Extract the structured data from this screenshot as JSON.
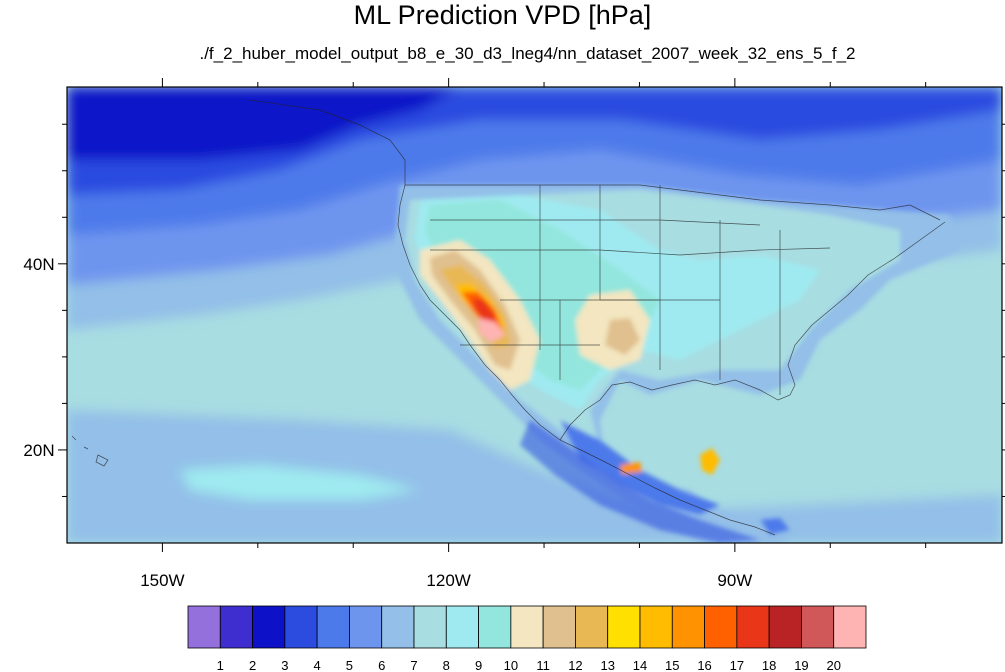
{
  "header": {
    "title": "ML Prediction VPD [hPa]",
    "subtitle": "./f_2_huber_model_output_b8_e_30_d3_lneg4/nn_dataset_2007_week_32_ens_5_f_2"
  },
  "map": {
    "lon_range": [
      -160,
      -62
    ],
    "lat_range": [
      10,
      59
    ],
    "lon_ticks": [
      {
        "lon": -150,
        "label": "150W"
      },
      {
        "lon": -120,
        "label": "120W"
      },
      {
        "lon": -90,
        "label": "90W"
      }
    ],
    "lat_ticks": [
      {
        "lat": 40,
        "label": "40N"
      },
      {
        "lat": 20,
        "label": "20N"
      }
    ],
    "minor_lon_ticks": [
      -140,
      -130,
      -110,
      -100,
      -80,
      -70
    ],
    "minor_lat_ticks": [
      15,
      25,
      30,
      35,
      45,
      50,
      55
    ]
  },
  "colorbar": {
    "colors": [
      "#9370db",
      "#3f2ecf",
      "#0d12c8",
      "#2c4ce0",
      "#4d7aea",
      "#6e95ee",
      "#93bfe8",
      "#a8dde2",
      "#9feaf0",
      "#93e6dd",
      "#f3e6c0",
      "#e0c08e",
      "#e8b854",
      "#ffe000",
      "#ffbc00",
      "#ff9200",
      "#ff6000",
      "#ea3618",
      "#ba2326",
      "#d15858",
      "#ffb4b4"
    ],
    "levels": [
      1,
      2,
      3,
      4,
      5,
      6,
      7,
      8,
      9,
      10,
      11,
      12,
      13,
      14,
      15,
      16,
      17,
      18,
      19,
      20
    ]
  }
}
